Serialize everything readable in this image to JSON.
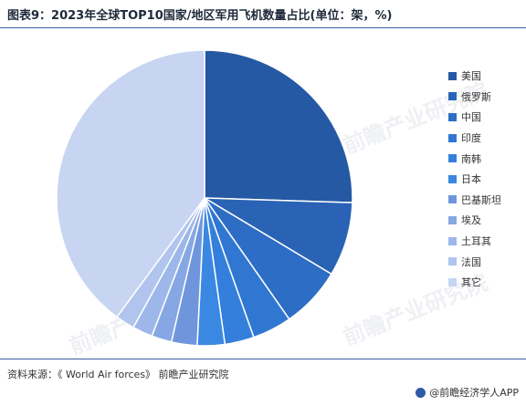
{
  "title": "图表9：2023年全球TOP10国家/地区军用飞机数量占比(单位：架，%)",
  "source": "资料来源：《 World Air forces》 前瞻产业研究院",
  "brand": "@前瞻经济学人APP",
  "watermark": "前瞻产业研究院",
  "colors": [
    "#2559a4",
    "#2a63b5",
    "#2d6dc5",
    "#3077d2",
    "#347fdb",
    "#3a88e2",
    "#6f96dd",
    "#86a7e4",
    "#9db7ea",
    "#b1c4ee",
    "#c7d4f2"
  ],
  "chart_data": {
    "type": "pie",
    "title": "图表9：2023年全球TOP10国家/地区军用飞机数量占比(单位：架，%)",
    "categories": [
      "美国",
      "俄罗斯",
      "中国",
      "印度",
      "南韩",
      "日本",
      "巴基斯坦",
      "埃及",
      "土耳其",
      "法国",
      "其它"
    ],
    "values": [
      25.5,
      8.1,
      6.7,
      4.3,
      3.2,
      3.0,
      2.8,
      2.2,
      2.2,
      2.1,
      39.9
    ],
    "legend_position": "right"
  }
}
